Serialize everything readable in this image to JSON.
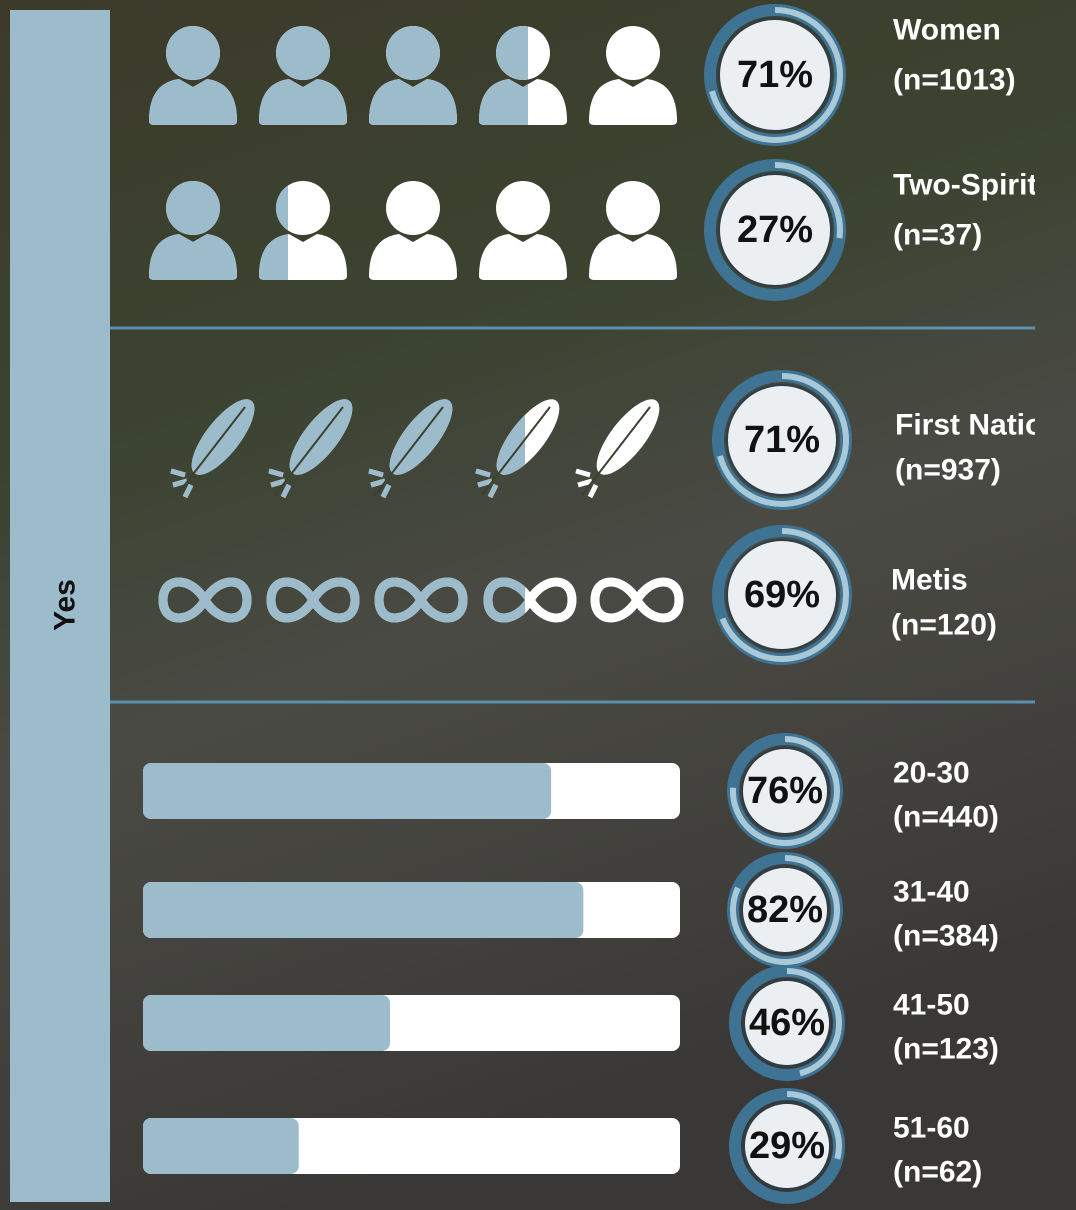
{
  "side_label": "Yes",
  "gender": [
    {
      "label": "Women",
      "n": "(n=1013)",
      "value": 71,
      "value_label": "71%"
    },
    {
      "label": "Two-Spirit",
      "n": "(n=37)",
      "value": 27,
      "value_label": "27%"
    }
  ],
  "indigenous": [
    {
      "label": "First Nations",
      "n": "(n=937)",
      "value": 71,
      "value_label": "71%"
    },
    {
      "label": "Metis",
      "n": "(n=120)",
      "value": 69,
      "value_label": "69%"
    }
  ],
  "age": [
    {
      "label": "20-30",
      "n": "(n=440)",
      "value": 76,
      "value_label": "76%"
    },
    {
      "label": "31-40",
      "n": "(n=384)",
      "value": 82,
      "value_label": "82%"
    },
    {
      "label": "41-50",
      "n": "(n=123)",
      "value": 46,
      "value_label": "46%"
    },
    {
      "label": "51-60",
      "n": "(n=62)",
      "value": 29,
      "value_label": "29%"
    }
  ]
}
